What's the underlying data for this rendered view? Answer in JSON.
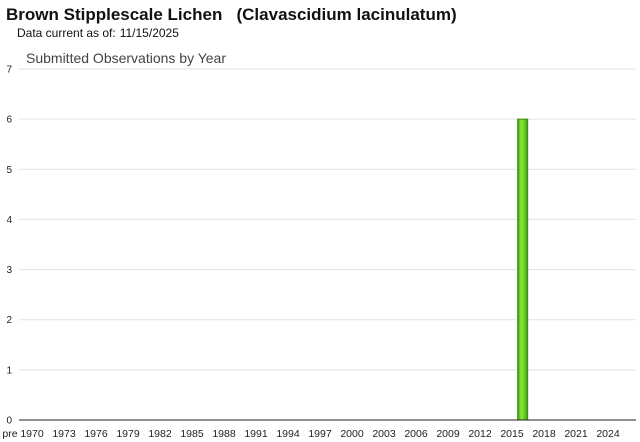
{
  "header": {
    "title": "Brown Stipplescale Lichen   (Clavascidium lacinulatum)",
    "data_current_label": "Data current as of:",
    "data_current_date": "11/15/2025"
  },
  "chart_data": {
    "type": "bar",
    "title": "Submitted Observations by Year",
    "xlabel": "",
    "ylabel": "",
    "ylim": [
      0,
      7
    ],
    "yticks": [
      0,
      1,
      2,
      3,
      4,
      5,
      6,
      7
    ],
    "grid": true,
    "x_tick_labels": [
      "pre",
      "1970",
      "1973",
      "1976",
      "1979",
      "1982",
      "1985",
      "1988",
      "1991",
      "1994",
      "1997",
      "2000",
      "2003",
      "2006",
      "2009",
      "2012",
      "2015",
      "2018",
      "2021",
      "2024"
    ],
    "categories": [
      "2016"
    ],
    "values": [
      6
    ],
    "bar_color": "#66cc22"
  }
}
